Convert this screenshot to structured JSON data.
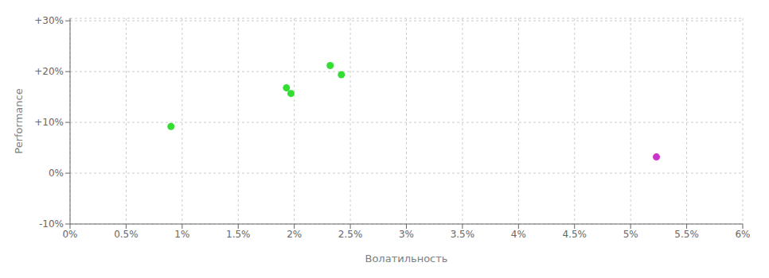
{
  "chart_data": {
    "type": "scatter",
    "xlabel": "Волатильность",
    "ylabel": "Performance",
    "xlim": [
      0,
      0.06
    ],
    "ylim": [
      -0.1,
      0.305
    ],
    "xticks": [
      {
        "value": 0.0,
        "label": "0%"
      },
      {
        "value": 0.005,
        "label": "0.5%"
      },
      {
        "value": 0.01,
        "label": "1%"
      },
      {
        "value": 0.015,
        "label": "1.5%"
      },
      {
        "value": 0.02,
        "label": "2%"
      },
      {
        "value": 0.025,
        "label": "2.5%"
      },
      {
        "value": 0.03,
        "label": "3%"
      },
      {
        "value": 0.035,
        "label": "3.5%"
      },
      {
        "value": 0.04,
        "label": "4%"
      },
      {
        "value": 0.045,
        "label": "4.5%"
      },
      {
        "value": 0.05,
        "label": "5%"
      },
      {
        "value": 0.055,
        "label": "5.5%"
      },
      {
        "value": 0.06,
        "label": "6%"
      }
    ],
    "yticks": [
      {
        "value": -0.1,
        "label": "-10%"
      },
      {
        "value": 0.0,
        "label": "0%"
      },
      {
        "value": 0.1,
        "label": "+10%"
      },
      {
        "value": 0.2,
        "label": "+20%"
      },
      {
        "value": 0.3,
        "label": "+30%"
      }
    ],
    "grid": true,
    "series": [
      {
        "color": "#33dd33",
        "x": [
          0.009,
          0.0193,
          0.0197,
          0.0232,
          0.0242
        ],
        "values": [
          0.092,
          0.168,
          0.157,
          0.212,
          0.194
        ]
      },
      {
        "color": "#cc33cc",
        "x": [
          0.0523
        ],
        "values": [
          0.032
        ]
      }
    ]
  }
}
